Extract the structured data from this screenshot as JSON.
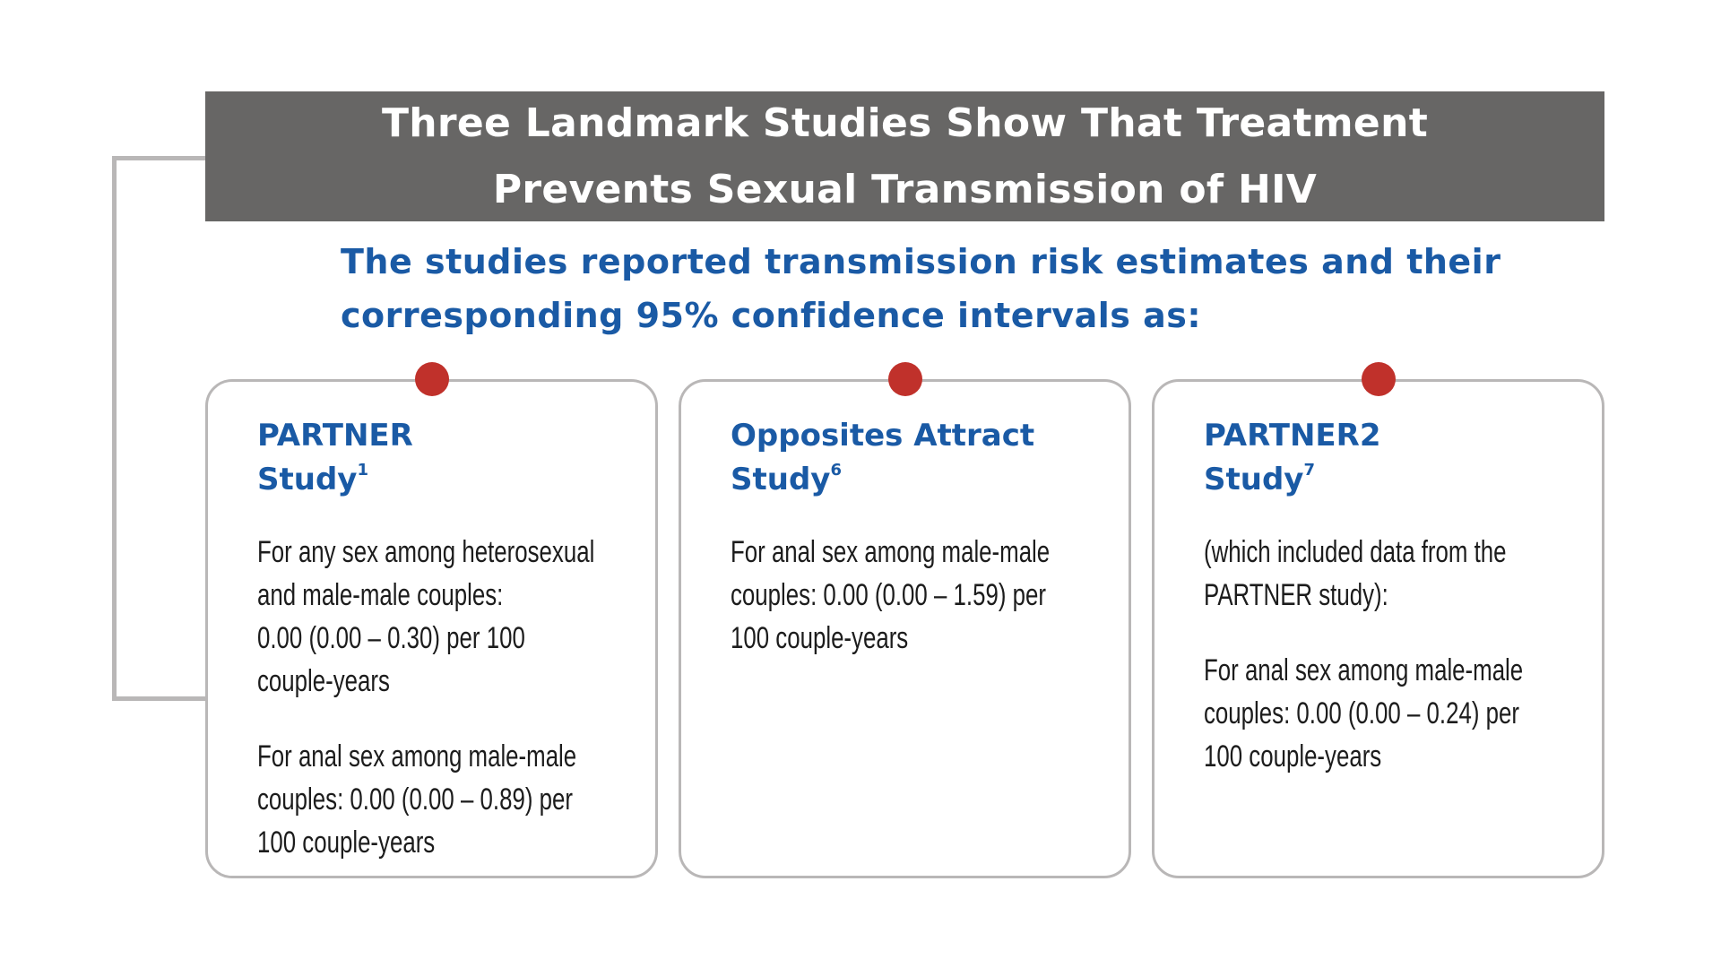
{
  "header": {
    "title_line1": "Three Landmark Studies Show That Treatment",
    "title_line2": "Prevents Sexual Transmission of HIV"
  },
  "subtitle": {
    "line1": "The studies reported transmission risk estimates and their",
    "line2": "corresponding 95% confidence intervals as:"
  },
  "cards": [
    {
      "title_line1": "PARTNER",
      "title_line2": "Study",
      "ref": "1",
      "para1": [
        "For any sex among heterosexual",
        "and male-male couples:",
        "0.00 (0.00 – 0.30) per 100",
        "couple-years"
      ],
      "para2": [
        "For anal sex among male-male",
        "couples: 0.00 (0.00 – 0.89) per",
        "100 couple-years"
      ]
    },
    {
      "title_line1": "Opposites Attract",
      "title_line2": "Study",
      "ref": "6",
      "para1": [
        "For anal sex among male-male",
        "couples: 0.00 (0.00 – 1.59) per",
        "100 couple-years"
      ]
    },
    {
      "title_line1": "PARTNER2",
      "title_line2": "Study",
      "ref": "7",
      "para1": [
        "(which included data from the",
        "PARTNER study):"
      ],
      "para2": [
        "For anal sex among male-male",
        "couples: 0.00 (0.00 – 0.24) per",
        "100 couple-years"
      ]
    }
  ],
  "colors": {
    "header_bg": "#676665",
    "accent_blue": "#1a5aa5",
    "dot_red": "#c0312b",
    "border_gray": "#b9b7b7"
  }
}
